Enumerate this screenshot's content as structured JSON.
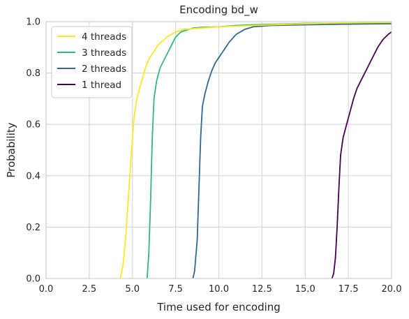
{
  "chart_data": {
    "type": "line",
    "title": "Encoding bd_w",
    "xlabel": "Time used for encoding",
    "ylabel": "Probability",
    "xlim": [
      0,
      20
    ],
    "ylim": [
      0,
      1
    ],
    "x_ticks": [
      0,
      2.5,
      5,
      7.5,
      10,
      12.5,
      15,
      17.5,
      20
    ],
    "x_tick_labels": [
      "0.0",
      "2.5",
      "5.0",
      "7.5",
      "10.0",
      "12.5",
      "15.0",
      "17.5",
      "20.0"
    ],
    "y_ticks": [
      0,
      0.2,
      0.4,
      0.6,
      0.8,
      1.0
    ],
    "y_tick_labels": [
      "0.0",
      "0.2",
      "0.4",
      "0.6",
      "0.8",
      "1.0"
    ],
    "grid": true,
    "legend_position": "top-left",
    "series": [
      {
        "name": "4 threads",
        "color": "#fde725",
        "points": [
          [
            4.3,
            0
          ],
          [
            4.45,
            0.05
          ],
          [
            4.6,
            0.15
          ],
          [
            4.75,
            0.3
          ],
          [
            4.9,
            0.45
          ],
          [
            5.0,
            0.55
          ],
          [
            5.1,
            0.63
          ],
          [
            5.25,
            0.7
          ],
          [
            5.5,
            0.76
          ],
          [
            5.75,
            0.82
          ],
          [
            6.0,
            0.86
          ],
          [
            6.5,
            0.91
          ],
          [
            7.0,
            0.94
          ],
          [
            7.5,
            0.96
          ],
          [
            8.0,
            0.97
          ],
          [
            9.0,
            0.975
          ],
          [
            10.0,
            0.98
          ],
          [
            12.0,
            0.985
          ],
          [
            14.0,
            0.99
          ],
          [
            17.0,
            0.995
          ],
          [
            20.0,
            0.997
          ]
        ]
      },
      {
        "name": "3 threads",
        "color": "#35b779",
        "points": [
          [
            5.85,
            0
          ],
          [
            5.95,
            0.1
          ],
          [
            6.05,
            0.3
          ],
          [
            6.15,
            0.55
          ],
          [
            6.25,
            0.7
          ],
          [
            6.4,
            0.77
          ],
          [
            6.6,
            0.82
          ],
          [
            6.9,
            0.86
          ],
          [
            7.2,
            0.9
          ],
          [
            7.5,
            0.94
          ],
          [
            7.8,
            0.96
          ],
          [
            8.5,
            0.975
          ],
          [
            9.0,
            0.978
          ],
          [
            10.0,
            0.98
          ],
          [
            11.0,
            0.985
          ],
          [
            12.0,
            0.988
          ],
          [
            15.0,
            0.993
          ],
          [
            18.0,
            0.995
          ],
          [
            20.0,
            0.996
          ]
        ]
      },
      {
        "name": "2 threads",
        "color": "#31688e",
        "points": [
          [
            8.5,
            0
          ],
          [
            8.6,
            0.03
          ],
          [
            8.75,
            0.15
          ],
          [
            8.85,
            0.35
          ],
          [
            8.95,
            0.55
          ],
          [
            9.05,
            0.67
          ],
          [
            9.2,
            0.72
          ],
          [
            9.4,
            0.77
          ],
          [
            9.6,
            0.81
          ],
          [
            9.8,
            0.84
          ],
          [
            10.0,
            0.86
          ],
          [
            10.3,
            0.89
          ],
          [
            10.6,
            0.92
          ],
          [
            11.0,
            0.95
          ],
          [
            11.5,
            0.97
          ],
          [
            12.0,
            0.98
          ],
          [
            13.0,
            0.985
          ],
          [
            15.0,
            0.988
          ],
          [
            17.0,
            0.99
          ],
          [
            20.0,
            0.992
          ]
        ]
      },
      {
        "name": "1 thread",
        "color": "#440154",
        "points": [
          [
            16.55,
            0
          ],
          [
            16.65,
            0.02
          ],
          [
            16.75,
            0.08
          ],
          [
            16.85,
            0.2
          ],
          [
            16.95,
            0.35
          ],
          [
            17.05,
            0.48
          ],
          [
            17.2,
            0.55
          ],
          [
            17.4,
            0.6
          ],
          [
            17.6,
            0.65
          ],
          [
            17.8,
            0.7
          ],
          [
            18.0,
            0.74
          ],
          [
            18.3,
            0.78
          ],
          [
            18.6,
            0.82
          ],
          [
            18.9,
            0.86
          ],
          [
            19.2,
            0.9
          ],
          [
            19.5,
            0.93
          ],
          [
            19.8,
            0.95
          ],
          [
            20.0,
            0.96
          ]
        ]
      }
    ]
  }
}
